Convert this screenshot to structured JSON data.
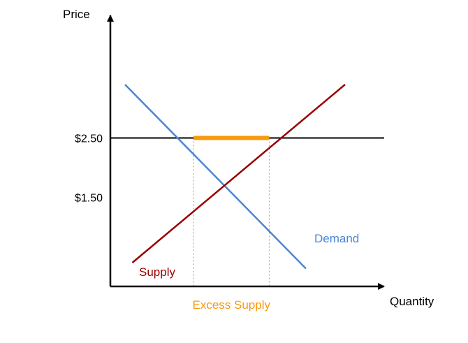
{
  "chart_data": {
    "type": "line",
    "title": "",
    "xlabel": "Quantity",
    "ylabel": "Price",
    "xlim": [
      0,
      10
    ],
    "ylim": [
      0,
      4
    ],
    "y_ticks": [
      {
        "value": 2.5,
        "label": "$2.50"
      },
      {
        "value": 1.5,
        "label": "$1.50"
      }
    ],
    "grid": false,
    "series": [
      {
        "name": "Demand",
        "color": "#4a86d4",
        "points": [
          [
            0.6,
            3.4
          ],
          [
            8.0,
            0.3
          ]
        ]
      },
      {
        "name": "Supply",
        "color": "#990000",
        "points": [
          [
            0.9,
            0.4
          ],
          [
            9.6,
            3.4
          ]
        ]
      }
    ],
    "price_floor": {
      "value": 2.5,
      "color": "#000000"
    },
    "excess_supply": {
      "label": "Excess Supply",
      "color": "#f89a0a",
      "q_demanded": 3.4,
      "q_supplied": 6.5,
      "price": 2.5
    }
  }
}
